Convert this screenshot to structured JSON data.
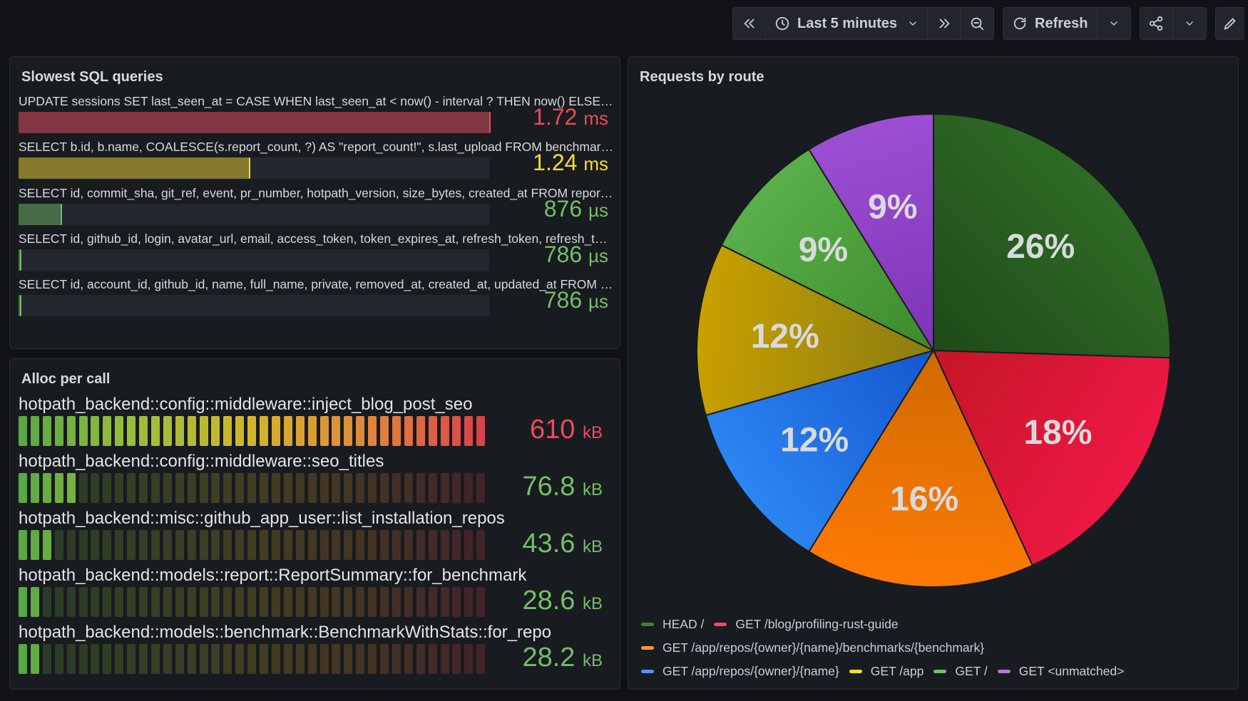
{
  "toolbar": {
    "time_range": "Last 5 minutes",
    "refresh_label": "Refresh"
  },
  "sql_panel": {
    "title": "Slowest SQL queries",
    "rows": [
      {
        "query": "UPDATE sessions SET last_seen_at = CASE WHEN last_seen_at < now() - interval ? THEN now() ELSE last_seen_at END WHERE id = ?",
        "value": "1.72",
        "unit": "ms",
        "fraction": 1.0,
        "color": "#f2495c"
      },
      {
        "query": "SELECT b.id, b.name, COALESCE(s.report_count, ?) AS \"report_count!\", s.last_upload FROM benchmarks b LEFT JOIN stats s",
        "value": "1.24",
        "unit": "ms",
        "fraction": 0.49,
        "color": "#fade2a"
      },
      {
        "query": "SELECT id, commit_sha, git_ref, event, pr_number, hotpath_version, size_bytes, created_at FROM reports WHERE benchmark_id = ?",
        "value": "876",
        "unit": "µs",
        "fraction": 0.09,
        "color": "#73bf69"
      },
      {
        "query": "SELECT id, github_id, login, avatar_url, email, access_token, token_expires_at, refresh_token, refresh_token_expires_at FROM users",
        "value": "786",
        "unit": "µs",
        "fraction": 0.002,
        "color": "#73bf69"
      },
      {
        "query": "SELECT id, account_id, github_id, name, full_name, private, removed_at, created_at, updated_at FROM repositories",
        "value": "786",
        "unit": "µs",
        "fraction": 0.002,
        "color": "#73bf69"
      }
    ]
  },
  "alloc_panel": {
    "title": "Alloc per call",
    "cell_count": 39,
    "rows": [
      {
        "name": "hotpath_backend::config::middleware::inject_blog_post_seo",
        "value": "610",
        "unit": "kB",
        "fraction": 1.0,
        "color": "#f2495c"
      },
      {
        "name": "hotpath_backend::config::middleware::seo_titles",
        "value": "76.8",
        "unit": "kB",
        "fraction": 0.126,
        "color": "#73bf69"
      },
      {
        "name": "hotpath_backend::misc::github_app_user::list_installation_repos",
        "value": "43.6",
        "unit": "kB",
        "fraction": 0.071,
        "color": "#73bf69"
      },
      {
        "name": "hotpath_backend::models::report::ReportSummary::for_benchmark",
        "value": "28.6",
        "unit": "kB",
        "fraction": 0.047,
        "color": "#73bf69"
      },
      {
        "name": "hotpath_backend::models::benchmark::BenchmarkWithStats::for_repo",
        "value": "28.2",
        "unit": "kB",
        "fraction": 0.046,
        "color": "#73bf69"
      }
    ]
  },
  "pie_panel": {
    "title": "Requests by route",
    "chart_data": {
      "type": "pie",
      "title": "Requests by route",
      "legend_position": "bottom",
      "slices": [
        {
          "name": "HEAD /",
          "value": 26,
          "label": "26%",
          "color": "#37872d",
          "fill_inner": "#1e4a18",
          "fill_outer": "#2f6b25"
        },
        {
          "name": "GET /blog/profiling-rust-guide",
          "value": 18,
          "label": "18%",
          "color": "#f2495c",
          "fill_inner": "#c41626",
          "fill_outer": "#ee1845"
        },
        {
          "name": "GET /app/repos/{owner}/{name}/benchmarks/{benchmark}",
          "value": 16,
          "label": "16%",
          "color": "#ff9830",
          "fill_inner": "#d06a00",
          "fill_outer": "#ff7a05"
        },
        {
          "name": "GET /app/repos/{owner}/{name}",
          "value": 12,
          "label": "12%",
          "color": "#5794f2",
          "fill_inner": "#1556d0",
          "fill_outer": "#2b86f2"
        },
        {
          "name": "GET /app",
          "value": 12,
          "label": "12%",
          "color": "#fade2a",
          "fill_inner": "#8a7d12",
          "fill_outer": "#c9a000"
        },
        {
          "name": "GET /",
          "value": 9,
          "label": "9%",
          "color": "#73bf69",
          "fill_inner": "#3c8a2a",
          "fill_outer": "#5ab04a"
        },
        {
          "name": "GET <unmatched>",
          "value": 9,
          "label": "9%",
          "color": "#b877d9",
          "fill_inner": "#7d34b6",
          "fill_outer": "#9d4fd4"
        }
      ]
    }
  }
}
